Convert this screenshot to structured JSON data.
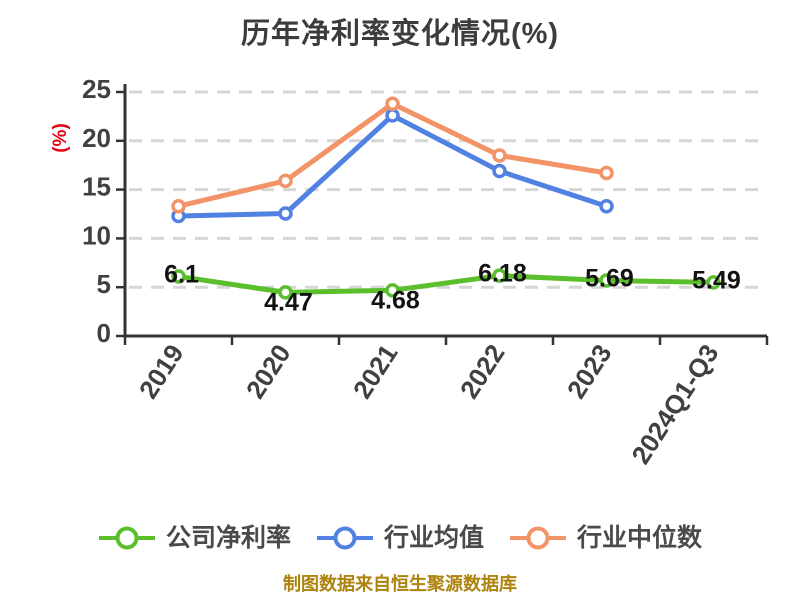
{
  "title": "历年净利率变化情况(%)",
  "caption": "制图数据来自恒生聚源数据库",
  "colors": {
    "green": "#5bbe2d",
    "blue": "#5181e2",
    "orange": "#f29368",
    "grid": "#d6d6d6",
    "axis": "#333333",
    "tick_text": "#404040",
    "data_label": "#121212",
    "unit_red": "#e60012",
    "title_text": "#3c3c3c",
    "legend_text": "#4a4a4a",
    "caption_text": "#ad830e",
    "marker_fill": "#ffffff"
  },
  "chart_data": {
    "type": "line",
    "title": "历年净利率变化情况(%)",
    "xlabel": "",
    "ylabel": "(%)",
    "categories": [
      "2019",
      "2020",
      "2021",
      "2022",
      "2023",
      "2024Q1-Q3"
    ],
    "y_ticks": [
      0,
      5,
      10,
      15,
      20,
      25
    ],
    "ylim": [
      0,
      25
    ],
    "grid": "horizontal-dashed",
    "legend_position": "bottom",
    "series": [
      {
        "name": "公司净利率",
        "color": "#5bbe2d",
        "values": [
          6.1,
          4.47,
          4.68,
          6.18,
          5.69,
          5.49
        ],
        "labels": [
          "6.1",
          "4.47",
          "4.68",
          "6.18",
          "5.69",
          "5.49"
        ],
        "label_positions": [
          "top",
          "bottom",
          "bottom",
          "top",
          "top",
          "top"
        ]
      },
      {
        "name": "行业均值",
        "color": "#5181e2",
        "values": [
          12.3,
          12.55,
          22.6,
          16.9,
          13.3
        ]
      },
      {
        "name": "行业中位数",
        "color": "#f29368",
        "values": [
          13.3,
          15.9,
          23.8,
          18.5,
          16.7
        ]
      }
    ]
  },
  "legend": {
    "items": [
      {
        "label": "公司净利率"
      },
      {
        "label": "行业均值"
      },
      {
        "label": "行业中位数"
      }
    ]
  }
}
